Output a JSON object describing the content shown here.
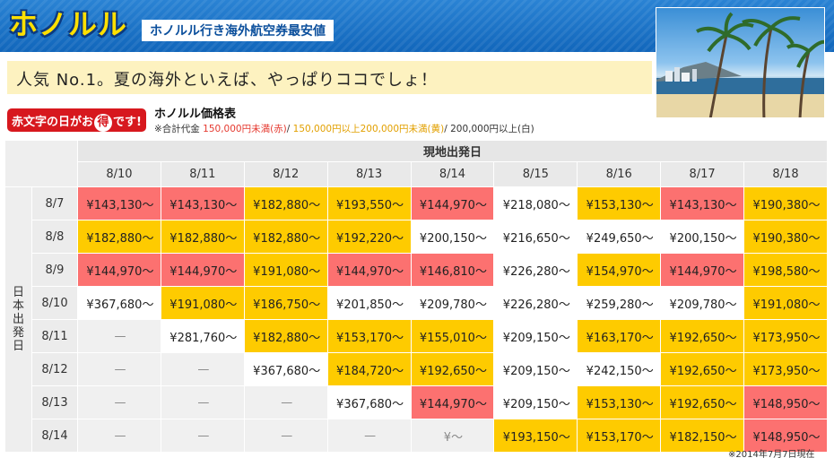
{
  "header": {
    "brand": "ホノルル",
    "subtitle": "ホノルル行き海外航空券最安値"
  },
  "banner": {
    "text": "人気 No.1。夏の海外といえば、やっぱりココでしょ！"
  },
  "badge": {
    "before": "赤文字の日がお",
    "circled": "得",
    "after": "です!"
  },
  "price_table": {
    "title": "ホノルル価格表",
    "legend": {
      "prefix": "※合計代金",
      "red": "150,000円未満(赤)",
      "sep": "/",
      "yellow": "150,000円以上200,000円未満(黄)",
      "white": "200,000円以上(白)"
    },
    "return_header": "現地出発日",
    "departure_header": "日本出発日",
    "return_dates": [
      "8/10",
      "8/11",
      "8/12",
      "8/13",
      "8/14",
      "8/15",
      "8/16",
      "8/17",
      "8/18"
    ],
    "rows": [
      {
        "date": "8/7",
        "cells": [
          {
            "v": "¥143,130〜",
            "c": "red"
          },
          {
            "v": "¥143,130〜",
            "c": "red"
          },
          {
            "v": "¥182,880〜",
            "c": "yel"
          },
          {
            "v": "¥193,550〜",
            "c": "yel"
          },
          {
            "v": "¥144,970〜",
            "c": "red"
          },
          {
            "v": "¥218,080〜",
            "c": "wht"
          },
          {
            "v": "¥153,130〜",
            "c": "yel"
          },
          {
            "v": "¥143,130〜",
            "c": "red"
          },
          {
            "v": "¥190,380〜",
            "c": "yel"
          }
        ]
      },
      {
        "date": "8/8",
        "cells": [
          {
            "v": "¥182,880〜",
            "c": "yel"
          },
          {
            "v": "¥182,880〜",
            "c": "yel"
          },
          {
            "v": "¥182,880〜",
            "c": "yel"
          },
          {
            "v": "¥192,220〜",
            "c": "yel"
          },
          {
            "v": "¥200,150〜",
            "c": "wht"
          },
          {
            "v": "¥216,650〜",
            "c": "wht"
          },
          {
            "v": "¥249,650〜",
            "c": "wht"
          },
          {
            "v": "¥200,150〜",
            "c": "wht"
          },
          {
            "v": "¥190,380〜",
            "c": "yel"
          }
        ]
      },
      {
        "date": "8/9",
        "cells": [
          {
            "v": "¥144,970〜",
            "c": "red"
          },
          {
            "v": "¥144,970〜",
            "c": "red"
          },
          {
            "v": "¥191,080〜",
            "c": "yel"
          },
          {
            "v": "¥144,970〜",
            "c": "red"
          },
          {
            "v": "¥146,810〜",
            "c": "red"
          },
          {
            "v": "¥226,280〜",
            "c": "wht"
          },
          {
            "v": "¥154,970〜",
            "c": "yel"
          },
          {
            "v": "¥144,970〜",
            "c": "red"
          },
          {
            "v": "¥198,580〜",
            "c": "yel"
          }
        ]
      },
      {
        "date": "8/10",
        "cells": [
          {
            "v": "¥367,680〜",
            "c": "wht"
          },
          {
            "v": "¥191,080〜",
            "c": "yel"
          },
          {
            "v": "¥186,750〜",
            "c": "yel"
          },
          {
            "v": "¥201,850〜",
            "c": "wht"
          },
          {
            "v": "¥209,780〜",
            "c": "wht"
          },
          {
            "v": "¥226,280〜",
            "c": "wht"
          },
          {
            "v": "¥259,280〜",
            "c": "wht"
          },
          {
            "v": "¥209,780〜",
            "c": "wht"
          },
          {
            "v": "¥191,080〜",
            "c": "yel"
          }
        ]
      },
      {
        "date": "8/11",
        "cells": [
          {
            "v": "—",
            "c": "none"
          },
          {
            "v": "¥281,760〜",
            "c": "wht"
          },
          {
            "v": "¥182,880〜",
            "c": "yel"
          },
          {
            "v": "¥153,170〜",
            "c": "yel"
          },
          {
            "v": "¥155,010〜",
            "c": "yel"
          },
          {
            "v": "¥209,150〜",
            "c": "wht"
          },
          {
            "v": "¥163,170〜",
            "c": "yel"
          },
          {
            "v": "¥192,650〜",
            "c": "yel"
          },
          {
            "v": "¥173,950〜",
            "c": "yel"
          }
        ]
      },
      {
        "date": "8/12",
        "cells": [
          {
            "v": "—",
            "c": "none"
          },
          {
            "v": "—",
            "c": "none"
          },
          {
            "v": "¥367,680〜",
            "c": "wht"
          },
          {
            "v": "¥184,720〜",
            "c": "yel"
          },
          {
            "v": "¥192,650〜",
            "c": "yel"
          },
          {
            "v": "¥209,150〜",
            "c": "wht"
          },
          {
            "v": "¥242,150〜",
            "c": "wht"
          },
          {
            "v": "¥192,650〜",
            "c": "yel"
          },
          {
            "v": "¥173,950〜",
            "c": "yel"
          }
        ]
      },
      {
        "date": "8/13",
        "cells": [
          {
            "v": "—",
            "c": "none"
          },
          {
            "v": "—",
            "c": "none"
          },
          {
            "v": "—",
            "c": "none"
          },
          {
            "v": "¥367,680〜",
            "c": "wht"
          },
          {
            "v": "¥144,970〜",
            "c": "red"
          },
          {
            "v": "¥209,150〜",
            "c": "wht"
          },
          {
            "v": "¥153,130〜",
            "c": "yel"
          },
          {
            "v": "¥192,650〜",
            "c": "yel"
          },
          {
            "v": "¥148,950〜",
            "c": "red"
          }
        ]
      },
      {
        "date": "8/14",
        "cells": [
          {
            "v": "—",
            "c": "none"
          },
          {
            "v": "—",
            "c": "none"
          },
          {
            "v": "—",
            "c": "none"
          },
          {
            "v": "—",
            "c": "none"
          },
          {
            "v": "¥〜",
            "c": "none"
          },
          {
            "v": "¥193,150〜",
            "c": "yel"
          },
          {
            "v": "¥153,170〜",
            "c": "yel"
          },
          {
            "v": "¥182,150〜",
            "c": "yel"
          },
          {
            "v": "¥148,950〜",
            "c": "red"
          }
        ]
      }
    ]
  },
  "note": "※2014年7月7日現在",
  "colors": {
    "red": "#fc7170",
    "yellow": "#fecb00",
    "white": "#ffffff",
    "header_blue": "#1166bb",
    "brand_yellow": "#ffe000"
  }
}
